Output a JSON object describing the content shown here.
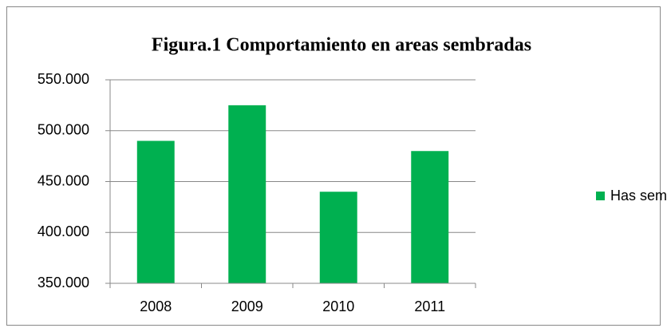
{
  "chart_data": {
    "type": "bar",
    "title": "Figura.1 Comportamiento en areas sembradas",
    "categories": [
      "2008",
      "2009",
      "2010",
      "2011"
    ],
    "series": [
      {
        "name": "Has sembradas",
        "color": "#00b050",
        "values": [
          490000,
          525000,
          440000,
          480000
        ]
      }
    ],
    "ylim": [
      350000,
      550000
    ],
    "yticks": [
      {
        "value": 350000,
        "label": "350.000"
      },
      {
        "value": 400000,
        "label": "400.000"
      },
      {
        "value": 450000,
        "label": "450.000"
      },
      {
        "value": 500000,
        "label": "500.000"
      },
      {
        "value": 550000,
        "label": "550.000"
      }
    ],
    "grid": true,
    "legend": "right"
  }
}
